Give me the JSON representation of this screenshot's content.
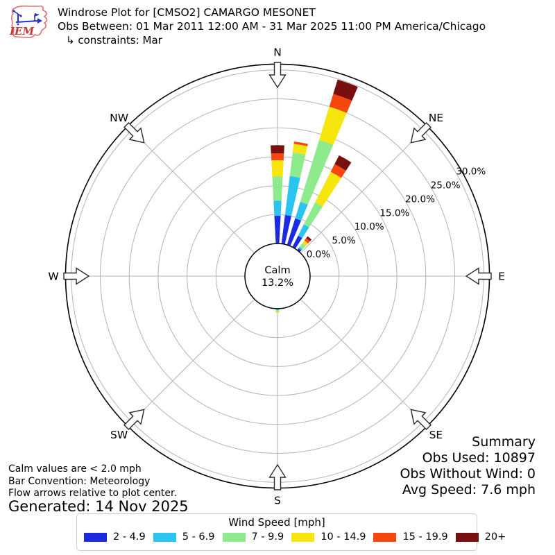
{
  "header": {
    "logo_text": "IEM",
    "title": "Windrose Plot for [CMSO2] CAMARGO MESONET",
    "obs_between": "Obs Between: 01 Mar 2011 12:00 AM - 31 Mar 2025 11:00 PM America/Chicago",
    "constraints": "↳ constraints: Mar"
  },
  "summary": {
    "heading": "Summary",
    "obs_used": "Obs Used: 10897",
    "obs_without_wind": "Obs Without Wind: 0",
    "avg_speed": "Avg Speed: 7.6 mph"
  },
  "notes": {
    "calm_note": "Calm values are < 2.0 mph",
    "convention_note": "Bar Convention: Meteorology",
    "arrows_note": "Flow arrows relative to plot center.",
    "generated": "Generated: 14 Nov 2025"
  },
  "legend": {
    "title": "Wind Speed [mph]",
    "bins": [
      {
        "label": "2 - 4.9",
        "color": "#1c2be0"
      },
      {
        "label": "5 - 6.9",
        "color": "#2bc3f0"
      },
      {
        "label": "7 - 9.9",
        "color": "#8deb8d"
      },
      {
        "label": "10 - 14.9",
        "color": "#f6e60e"
      },
      {
        "label": "15 - 19.9",
        "color": "#f6470e"
      },
      {
        "label": "20+",
        "color": "#7a0f10"
      }
    ]
  },
  "chart_data": {
    "type": "windrose",
    "units": "percent frequency of wind direction",
    "calm": {
      "label": "Calm",
      "value": "13.2%"
    },
    "compass_labels": [
      "N",
      "NE",
      "E",
      "SE",
      "S",
      "SW",
      "W",
      "NW"
    ],
    "ring_ticks_pct": [
      0,
      5,
      10,
      15,
      20,
      25,
      30
    ],
    "ring_tick_labels": [
      "0.0%",
      "5.0%",
      "10.0%",
      "15.0%",
      "20.0%",
      "25.0%",
      "30.0%"
    ],
    "ring_label_azimuth_deg": 61.5,
    "rmax_pct": 31,
    "sector_degrees": 10,
    "bar_width_degrees": 6,
    "speed_bins_mph": [
      "2 - 4.9",
      "5 - 6.9",
      "7 - 9.9",
      "10 - 14.9",
      "15 - 19.9",
      "20+"
    ],
    "bin_colors": [
      "#1c2be0",
      "#2bc3f0",
      "#8deb8d",
      "#f6e60e",
      "#f6470e",
      "#7a0f10"
    ],
    "petals": [
      {
        "direction_deg": 0,
        "values_pct": [
          4.8,
          2.6,
          4.2,
          2.8,
          1.2,
          1.4
        ]
      },
      {
        "direction_deg": 10,
        "values_pct": [
          5.0,
          6.8,
          4.1,
          1.5,
          0.4,
          0.0
        ]
      },
      {
        "direction_deg": 20,
        "values_pct": [
          4.8,
          3.0,
          11.2,
          6.0,
          2.3,
          2.6
        ]
      },
      {
        "direction_deg": 30,
        "values_pct": [
          2.2,
          2.2,
          4.3,
          5.9,
          1.5,
          1.7
        ]
      },
      {
        "direction_deg": 40,
        "values_pct": [
          0.4,
          0.3,
          0.8,
          0.6,
          0.5,
          0.4
        ]
      },
      {
        "direction_deg": 180,
        "values_pct": [
          0.1,
          0.1,
          0.3,
          0.2,
          0.0,
          0.0
        ]
      }
    ]
  }
}
